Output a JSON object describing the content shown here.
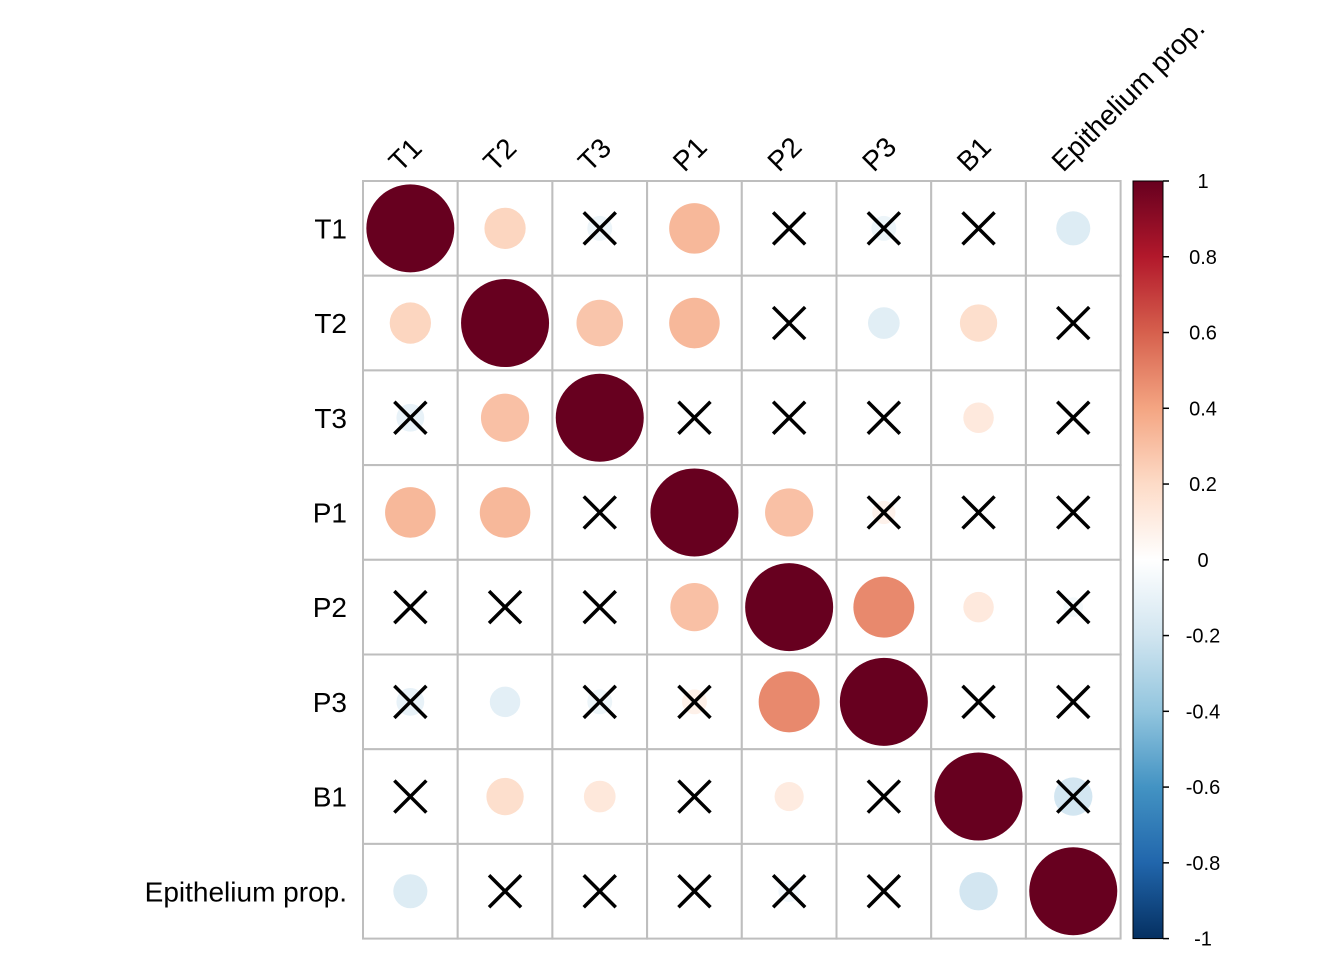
{
  "chart_data": {
    "type": "heatmap",
    "subtype": "correlation-circle-matrix",
    "variables": [
      "T1",
      "T2",
      "T3",
      "P1",
      "P2",
      "P3",
      "B1",
      "Epithelium prop."
    ],
    "matrix": [
      [
        1.0,
        0.22,
        -0.08,
        0.33,
        0.0,
        -0.08,
        0.0,
        -0.15
      ],
      [
        0.22,
        1.0,
        0.28,
        0.33,
        0.0,
        -0.13,
        0.18,
        0.0
      ],
      [
        -0.1,
        0.3,
        1.0,
        0.0,
        0.0,
        0.0,
        0.12,
        0.0
      ],
      [
        0.33,
        0.33,
        0.0,
        1.0,
        0.3,
        0.07,
        0.0,
        0.0
      ],
      [
        0.0,
        0.0,
        0.0,
        0.3,
        1.0,
        0.48,
        0.12,
        -0.05
      ],
      [
        -0.1,
        -0.12,
        -0.08,
        0.08,
        0.48,
        1.0,
        0.0,
        0.0
      ],
      [
        0.0,
        0.18,
        0.13,
        0.0,
        0.11,
        0.0,
        1.0,
        -0.19
      ],
      [
        -0.15,
        0.0,
        0.0,
        0.0,
        -0.06,
        0.0,
        -0.19,
        1.0
      ]
    ],
    "crossed": [
      [
        0,
        0,
        1,
        0,
        1,
        1,
        1,
        0
      ],
      [
        0,
        0,
        0,
        0,
        1,
        0,
        0,
        1
      ],
      [
        1,
        0,
        0,
        1,
        1,
        1,
        0,
        1
      ],
      [
        0,
        0,
        1,
        0,
        0,
        1,
        1,
        1
      ],
      [
        1,
        1,
        1,
        0,
        0,
        0,
        0,
        1
      ],
      [
        1,
        0,
        1,
        1,
        0,
        0,
        1,
        1
      ],
      [
        1,
        0,
        0,
        1,
        0,
        1,
        0,
        1
      ],
      [
        0,
        1,
        1,
        1,
        1,
        1,
        0,
        0
      ]
    ],
    "colorbar": {
      "ticks": [
        "1",
        "0.8",
        "0.6",
        "0.4",
        "0.2",
        "0",
        "-0.2",
        "-0.4",
        "-0.6",
        "-0.8",
        "-1"
      ],
      "range": [
        -1,
        1
      ],
      "colors": [
        "#67001F",
        "#B2182B",
        "#D6604D",
        "#F4A582",
        "#FDDBC7",
        "#FFFFFF",
        "#D1E5F0",
        "#92C5DE",
        "#4393C3",
        "#2166AC",
        "#053061"
      ]
    },
    "grid": true
  }
}
